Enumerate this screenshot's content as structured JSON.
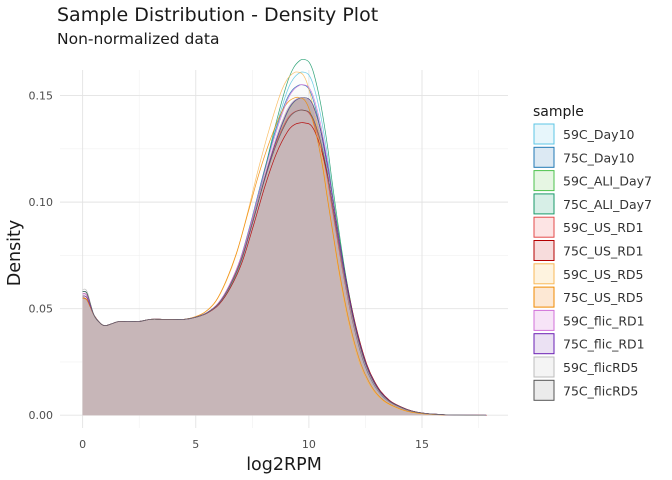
{
  "chart_data": {
    "type": "area",
    "title": "Sample Distribution - Density Plot",
    "subtitle": "Non-normalized data",
    "xlabel": "log2RPM",
    "ylabel": "Density",
    "xlim": [
      -1,
      18.8
    ],
    "ylim": [
      -0.006,
      0.162
    ],
    "x_ticks": [
      0,
      5,
      10,
      15
    ],
    "y_ticks": [
      0.0,
      0.05,
      0.1,
      0.15
    ],
    "x_tick_labels": [
      "0",
      "5",
      "10",
      "15"
    ],
    "y_tick_labels": [
      "0.00",
      "0.05",
      "0.10",
      "0.15"
    ],
    "grid": true,
    "legend": {
      "title": "sample",
      "position": "right"
    },
    "base_curve": {
      "x": [
        0,
        0.2,
        0.5,
        0.8,
        1.0,
        1.3,
        1.6,
        2.0,
        2.5,
        3.0,
        3.5,
        4.0,
        4.5,
        5.0,
        5.5,
        6.0,
        6.5,
        7.0,
        7.5,
        8.0,
        8.5,
        9.0,
        9.3,
        9.6,
        9.8,
        10.0,
        10.2,
        10.5,
        10.8,
        11.0,
        11.3,
        11.6,
        12.0,
        12.5,
        13.0,
        13.5,
        14.0,
        14.5,
        15.0,
        15.5,
        16.0,
        16.5,
        17.0,
        17.5,
        17.8
      ],
      "y": [
        0.055,
        0.054,
        0.047,
        0.043,
        0.042,
        0.043,
        0.044,
        0.044,
        0.044,
        0.045,
        0.045,
        0.045,
        0.045,
        0.046,
        0.048,
        0.052,
        0.06,
        0.072,
        0.09,
        0.11,
        0.128,
        0.142,
        0.147,
        0.149,
        0.149,
        0.148,
        0.144,
        0.133,
        0.117,
        0.103,
        0.083,
        0.064,
        0.043,
        0.024,
        0.013,
        0.007,
        0.004,
        0.002,
        0.001,
        0.0005,
        0.0002,
        0.0001,
        5e-05,
        2e-05,
        0.0
      ]
    },
    "series": [
      {
        "name": "59C_Day10",
        "fill": "#e7f6fb",
        "stroke": "#5cc6e4",
        "peak_scale": 1.02,
        "x_shift": 0.0,
        "start": 0.058,
        "mid_bump": 0.0
      },
      {
        "name": "75C_Day10",
        "fill": "#dce9f3",
        "stroke": "#1f78b4",
        "peak_scale": 1.01,
        "x_shift": -0.05,
        "start": 0.057,
        "mid_bump": 0.001
      },
      {
        "name": "59C_ALI_Day7",
        "fill": "#e6f6e3",
        "stroke": "#4cc24c",
        "peak_scale": 1.0,
        "x_shift": 0.05,
        "start": 0.056,
        "mid_bump": 0.002
      },
      {
        "name": "75C_ALI_Day7",
        "fill": "#d7efe7",
        "stroke": "#1a9a6a",
        "peak_scale": 1.03,
        "x_shift": 0.02,
        "start": 0.058,
        "mid_bump": 0.0
      },
      {
        "name": "59C_US_RD1",
        "fill": "#fde4e4",
        "stroke": "#e34a4a",
        "peak_scale": 0.99,
        "x_shift": -0.03,
        "start": 0.057,
        "mid_bump": 0.001
      },
      {
        "name": "75C_US_RD1",
        "fill": "#f7dcdc",
        "stroke": "#b40000",
        "peak_scale": 0.98,
        "x_shift": 0.06,
        "start": 0.055,
        "mid_bump": 0.0
      },
      {
        "name": "59C_US_RD5",
        "fill": "#fef3df",
        "stroke": "#f8b858",
        "peak_scale": 1.02,
        "x_shift": -0.25,
        "start": 0.056,
        "mid_bump": 0.004
      },
      {
        "name": "75C_US_RD5",
        "fill": "#fde8d4",
        "stroke": "#f08a00",
        "peak_scale": 1.0,
        "x_shift": -0.2,
        "start": 0.055,
        "mid_bump": 0.006
      },
      {
        "name": "59C_flic_RD1",
        "fill": "#f7e4f7",
        "stroke": "#d070d8",
        "peak_scale": 1.01,
        "x_shift": 0.0,
        "start": 0.057,
        "mid_bump": 0.002
      },
      {
        "name": "75C_flic_RD1",
        "fill": "#ebe1f3",
        "stroke": "#6a1fb4",
        "peak_scale": 1.0,
        "x_shift": 0.03,
        "start": 0.056,
        "mid_bump": 0.001
      },
      {
        "name": "59C_flicRD5",
        "fill": "#f4f4f4",
        "stroke": "#bdbdbd",
        "peak_scale": 1.0,
        "x_shift": -0.02,
        "start": 0.059,
        "mid_bump": 0.0
      },
      {
        "name": "75C_flicRD5",
        "fill": "#ebebeb",
        "stroke": "#555555",
        "peak_scale": 0.99,
        "x_shift": 0.01,
        "start": 0.058,
        "mid_bump": 0.001
      }
    ],
    "combined_fill": "#ab9196"
  }
}
